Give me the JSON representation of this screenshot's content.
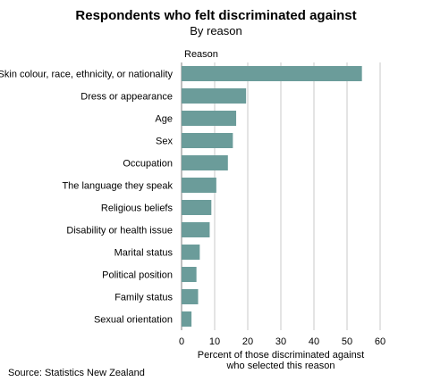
{
  "title": "Respondents who felt discriminated against",
  "subtitle": "By reason",
  "source": "Source: Statistics New Zealand",
  "chart_data": {
    "type": "bar",
    "orientation": "horizontal",
    "title": "Respondents who felt discriminated against",
    "subtitle": "By reason",
    "ylabel": "Reason",
    "xlabel_lines": [
      "Percent of those discriminated against",
      "who selected this reason"
    ],
    "categories": [
      "Skin colour, race, ethnicity, or nationality",
      "Dress or appearance",
      "Age",
      "Sex",
      "Occupation",
      "The language they speak",
      "Religious beliefs",
      "Disability or health issue",
      "Marital status",
      "Political position",
      "Family status",
      "Sexual orientation"
    ],
    "values": [
      54.5,
      19.5,
      16.5,
      15.5,
      14.0,
      10.5,
      9.0,
      8.5,
      5.5,
      4.5,
      5.0,
      3.0
    ],
    "xlim": [
      0,
      60
    ],
    "xticks": [
      0,
      10,
      20,
      30,
      40,
      50,
      60
    ],
    "grid": true,
    "bar_color": "#6b9c9a",
    "grid_color": "#c8c8c8"
  }
}
